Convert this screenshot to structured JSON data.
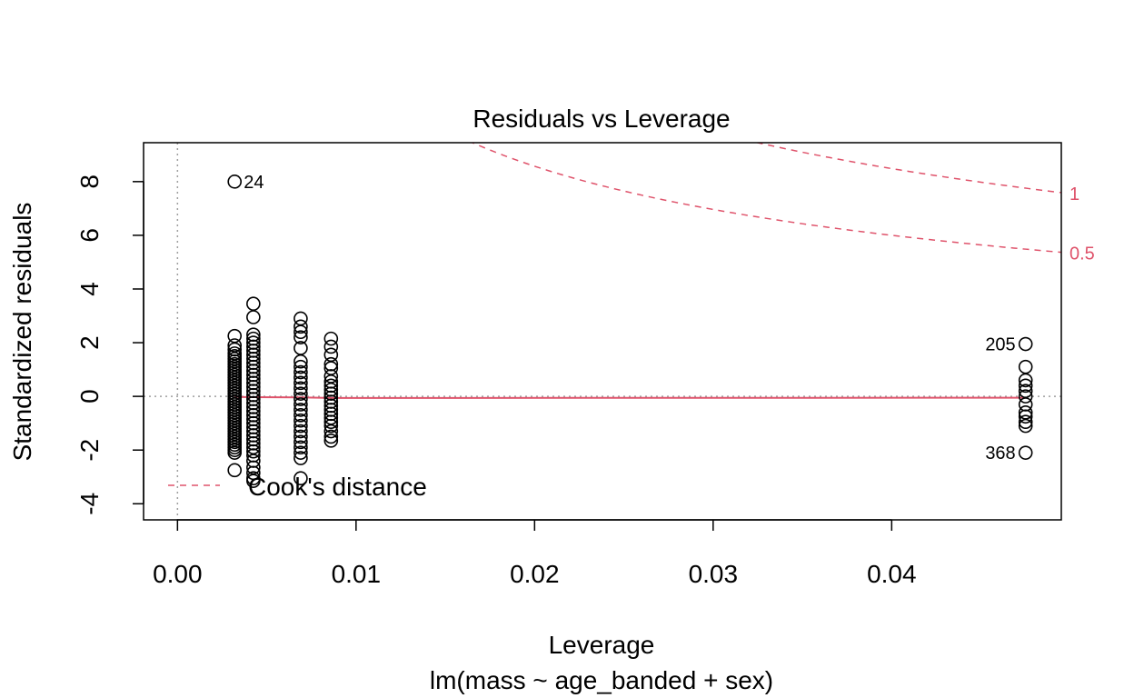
{
  "chart_data": {
    "type": "scatter",
    "title": "Residuals vs Leverage",
    "xlabel": "Leverage",
    "sublabel": "lm(mass ~ age_banded + sex)",
    "ylabel": "Standardized residuals",
    "xlim": [
      -0.0019,
      0.0495
    ],
    "ylim": [
      -4.6,
      9.45
    ],
    "x_ticks": [
      {
        "value": 0.0,
        "label": "0.00"
      },
      {
        "value": 0.01,
        "label": "0.01"
      },
      {
        "value": 0.02,
        "label": "0.02"
      },
      {
        "value": 0.03,
        "label": "0.03"
      },
      {
        "value": 0.04,
        "label": "0.04"
      }
    ],
    "y_ticks": [
      {
        "value": -4,
        "label": "-4"
      },
      {
        "value": -2,
        "label": "-2"
      },
      {
        "value": 0,
        "label": "0"
      },
      {
        "value": 2,
        "label": "2"
      },
      {
        "value": 4,
        "label": "4"
      },
      {
        "value": 6,
        "label": "6"
      },
      {
        "value": 8,
        "label": "8"
      }
    ],
    "points": [
      {
        "x": 0.0032,
        "y": [
          8.0,
          2.25,
          1.9,
          1.75,
          1.6,
          1.5,
          1.4,
          1.3,
          1.2,
          1.1,
          1.0,
          0.9,
          0.8,
          0.7,
          0.6,
          0.5,
          0.4,
          0.3,
          0.2,
          0.1,
          0.0,
          -0.1,
          -0.2,
          -0.3,
          -0.4,
          -0.5,
          -0.6,
          -0.7,
          -0.8,
          -0.9,
          -1.0,
          -1.1,
          -1.2,
          -1.3,
          -1.4,
          -1.5,
          -1.6,
          -1.7,
          -1.8,
          -1.9,
          -2.0,
          -2.1,
          -2.75
        ]
      },
      {
        "x": 0.00425,
        "y": [
          3.45,
          2.95,
          2.3,
          2.15,
          2.0,
          1.85,
          1.7,
          1.55,
          1.4,
          1.25,
          1.1,
          0.95,
          0.8,
          0.65,
          0.5,
          0.35,
          0.2,
          0.05,
          -0.1,
          -0.25,
          -0.4,
          -0.55,
          -0.7,
          -0.85,
          -1.0,
          -1.15,
          -1.3,
          -1.45,
          -1.6,
          -1.75,
          -1.9,
          -2.05,
          -2.2,
          -2.4,
          -2.65,
          -2.85,
          -3.05,
          -3.15
        ]
      },
      {
        "x": 0.0069,
        "y": [
          2.9,
          2.6,
          2.4,
          2.2,
          1.8,
          1.3,
          1.1,
          0.9,
          0.7,
          0.5,
          0.3,
          0.1,
          -0.1,
          -0.3,
          -0.5,
          -0.7,
          -0.9,
          -1.1,
          -1.3,
          -1.5,
          -1.7,
          -1.9,
          -2.1,
          -2.3,
          -3.05
        ]
      },
      {
        "x": 0.0086,
        "y": [
          2.15,
          1.85,
          1.55,
          1.2,
          1.05,
          0.75,
          0.55,
          0.4,
          0.25,
          0.1,
          -0.05,
          -0.2,
          -0.35,
          -0.5,
          -0.65,
          -0.8,
          -0.95,
          -1.1,
          -1.3,
          -1.5,
          -1.65
        ]
      },
      {
        "x": 0.0475,
        "y": [
          1.95,
          1.1,
          0.6,
          0.4,
          0.2,
          0.0,
          -0.3,
          -0.6,
          -0.75,
          -0.95,
          -1.1,
          -2.1
        ]
      }
    ],
    "point_labels": [
      {
        "text": "24",
        "x": 0.0032,
        "y": 8.0,
        "side": "right"
      },
      {
        "text": "205",
        "x": 0.0475,
        "y": 1.95,
        "side": "left"
      },
      {
        "text": "368",
        "x": 0.0475,
        "y": -2.1,
        "side": "left"
      }
    ],
    "smoother": [
      [
        0.0032,
        -0.02
      ],
      [
        0.0043,
        -0.03
      ],
      [
        0.0069,
        -0.04
      ],
      [
        0.0086,
        -0.06
      ],
      [
        0.0475,
        -0.05
      ]
    ],
    "cooks_distance": {
      "levels": [
        {
          "value": 0.5,
          "label": "0.5"
        },
        {
          "value": 1,
          "label": "1"
        }
      ],
      "p": 3
    },
    "legend": {
      "label": "Cook's distance",
      "position": "bottom-left"
    },
    "colors": {
      "cooks": "#DF536B",
      "smoother": "#DF536B",
      "reference": "#9E9E9E",
      "points": "#000000"
    }
  }
}
